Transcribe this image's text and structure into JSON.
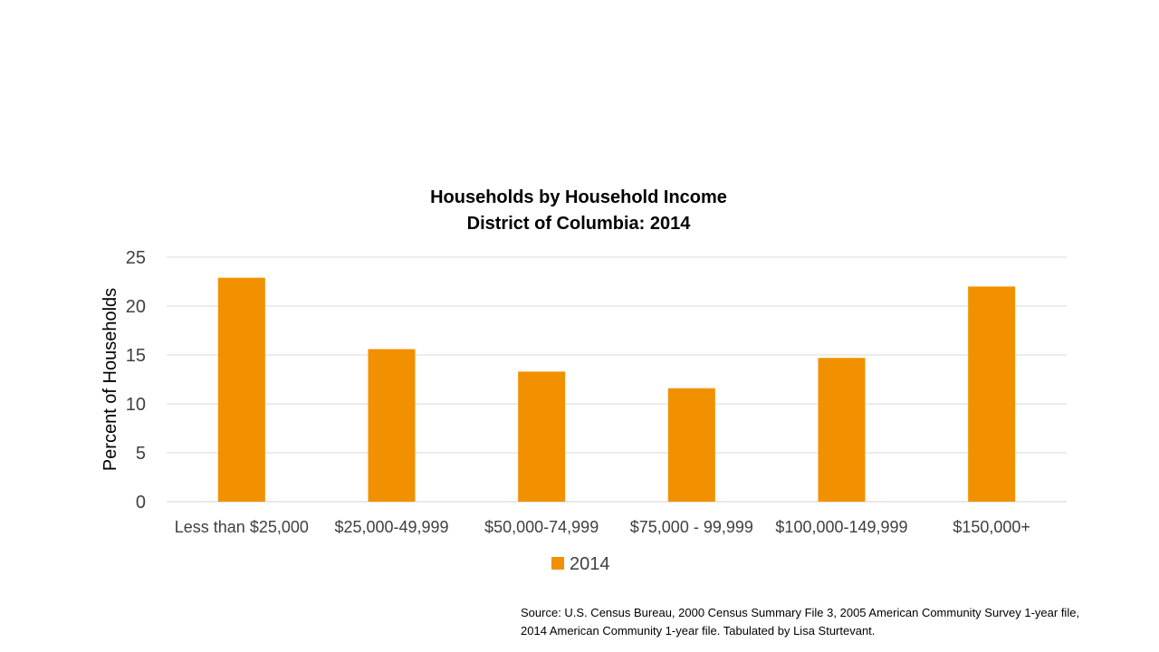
{
  "chart_data": {
    "type": "bar",
    "title_line1": "Households by Household Income",
    "title_line2": "District of Columbia: 2014",
    "ylabel": "Percent of Households",
    "xlabel": "",
    "categories": [
      "Less than $25,000",
      "$25,000-49,999",
      "$50,000-74,999",
      "$75,000 - 99,999",
      "$100,000-149,999",
      "$150,000+"
    ],
    "series": [
      {
        "name": "2014",
        "color": "#F29100",
        "values": [
          22.9,
          15.6,
          13.3,
          11.6,
          14.7,
          22.0
        ]
      }
    ],
    "ylim": [
      0,
      25
    ],
    "yticks": [
      0,
      5,
      10,
      15,
      20,
      25
    ],
    "grid": true,
    "legend_position": "bottom"
  },
  "source": {
    "line1": "Source: U.S. Census Bureau, 2000 Census Summary File 3, 2005 American Community Survey 1-year file,",
    "line2": "2014 American Community 1-year file. Tabulated by Lisa Sturtevant."
  }
}
